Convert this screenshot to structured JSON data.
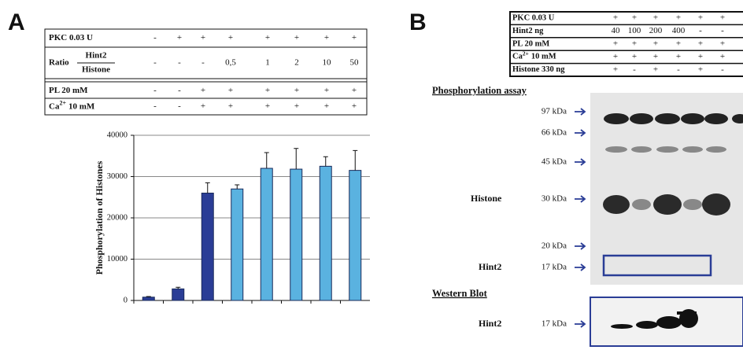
{
  "panel_a": {
    "letter": "A",
    "table": {
      "rows": [
        {
          "label": "PKC 0.03 U",
          "cells": [
            "-",
            "+",
            "+",
            "+",
            "+",
            "+",
            "+",
            "+"
          ]
        },
        {
          "label": "Ratio",
          "numerator": "Hint2",
          "denominator": "Histone",
          "cells": [
            "-",
            "-",
            "-",
            "0,5",
            "1",
            "2",
            "10",
            "50"
          ]
        },
        {
          "label": "PL 20 mM",
          "cells": [
            "-",
            "-",
            "+",
            "+",
            "+",
            "+",
            "+",
            "+"
          ]
        },
        {
          "label": "Ca",
          "sup": "2+",
          "tail": "10 mM",
          "cells": [
            "-",
            "-",
            "+",
            "+",
            "+",
            "+",
            "+",
            "+"
          ]
        }
      ]
    }
  },
  "chart_data": {
    "type": "bar",
    "y_label": "Phosphorylation of Histones",
    "categories": [
      null,
      null,
      null,
      null,
      null,
      null,
      null,
      null
    ],
    "values": [
      800,
      2800,
      26000,
      27000,
      32000,
      31800,
      32500,
      31500
    ],
    "errors": [
      150,
      400,
      2500,
      1000,
      3800,
      5000,
      2300,
      4800
    ],
    "colors": [
      "#2a3d96",
      "#2a3d96",
      "#2a3d96",
      "#5ab2e0",
      "#5ab2e0",
      "#5ab2e0",
      "#5ab2e0",
      "#5ab2e0"
    ],
    "ylim": [
      0,
      40000
    ],
    "yticks": [
      0,
      10000,
      20000,
      30000,
      40000
    ],
    "grid": true
  },
  "panel_b": {
    "letter": "B",
    "table": {
      "rows": [
        {
          "label": "PKC 0.03 U",
          "cells": [
            "+",
            "+",
            "+",
            "+",
            "+",
            "+"
          ]
        },
        {
          "label": "Hint2 ng",
          "cells": [
            "40",
            "100",
            "200",
            "400",
            "-",
            "-"
          ]
        },
        {
          "label": "PL 20 mM",
          "cells": [
            "+",
            "+",
            "+",
            "+",
            "+",
            "+"
          ]
        },
        {
          "label": "Ca",
          "sup": "2+",
          "tail": "10 mM",
          "cells": [
            "+",
            "+",
            "+",
            "+",
            "+",
            "+"
          ]
        },
        {
          "label": "Histone 330 ng",
          "cells": [
            "+",
            "-",
            "+",
            "-",
            "+",
            "-"
          ]
        }
      ]
    },
    "assay_title": "Phosphorylation assay",
    "markers": [
      "97 kDa",
      "66 kDa",
      "45 kDa",
      "30 kDa",
      "20 kDa",
      "17 kDa"
    ],
    "histone_label": "Histone",
    "hint2_label": "Hint2",
    "western_title": "Western Blot",
    "western_label": "Hint2",
    "western_marker": "17 kDa"
  }
}
